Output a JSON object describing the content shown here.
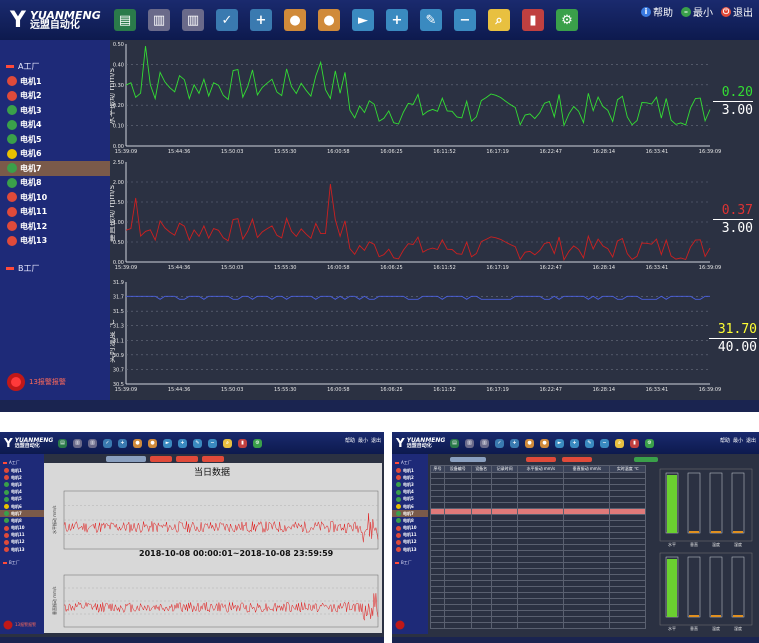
{
  "brand": {
    "en": "YUANMENG",
    "cn": "远盟自动化"
  },
  "toolbar": {
    "icons": [
      "monitor-icon",
      "factory-view-icon",
      "factory-settings-icon",
      "motor-check-icon",
      "motor-add-icon",
      "user-check-icon",
      "user-settings-icon",
      "flag-icon",
      "flag-add-icon",
      "flag-edit-icon",
      "flag-remove-icon",
      "report-search-icon",
      "bar-chart-icon",
      "gear-icon"
    ],
    "help": "帮助",
    "minimize": "最小",
    "exit": "退出"
  },
  "sidebar": {
    "factory_a": "A工厂",
    "factory_b": "B工厂",
    "motors": [
      {
        "label": "电机1",
        "status": "red"
      },
      {
        "label": "电机2",
        "status": "red"
      },
      {
        "label": "电机3",
        "status": "green"
      },
      {
        "label": "电机4",
        "status": "green"
      },
      {
        "label": "电机5",
        "status": "green"
      },
      {
        "label": "电机6",
        "status": "yellow"
      },
      {
        "label": "电机7",
        "status": "green",
        "selected": true
      },
      {
        "label": "电机8",
        "status": "green"
      },
      {
        "label": "电机10",
        "status": "red"
      },
      {
        "label": "电机11",
        "status": "red"
      },
      {
        "label": "电机12",
        "status": "red"
      },
      {
        "label": "电机13",
        "status": "red"
      }
    ],
    "alarm": "13报警报警"
  },
  "charts": {
    "x_ticks": [
      "15:39:09",
      "15:44:36",
      "15:50:03",
      "15:55:30",
      "16:00:58",
      "16:06:25",
      "16:11:52",
      "16:17:19",
      "16:22:47",
      "16:28:14",
      "16:33:41",
      "16:39:09"
    ],
    "h_vib": {
      "ylabel": "水平振动 mm/s",
      "yticks": [
        "0.50",
        "0.40",
        "0.30",
        "0.20",
        "0.10",
        "0.00"
      ],
      "current": "0.20",
      "limit": "3.00",
      "color": "#33dd33",
      "current_color": "#33dd33"
    },
    "v_vib": {
      "ylabel": "垂直振动 mm/s",
      "yticks": [
        "2.50",
        "2.00",
        "1.50",
        "1.00",
        "0.50",
        "0.00"
      ],
      "current": "0.37",
      "limit": "3.00",
      "color": "#cc2020",
      "current_color": "#dd3333"
    },
    "temp": {
      "ylabel": "实时温度 ℃",
      "yticks": [
        "31.9",
        "31.7",
        "31.5",
        "31.3",
        "31.1",
        "30.9",
        "30.7",
        "30.5"
      ],
      "current": "31.70",
      "limit": "40.00",
      "color": "#4a60e0",
      "current_color": "#ffff33"
    }
  },
  "history_window": {
    "title": "当日数据",
    "range": "2018-10-08 00:00:01~2018-10-08 23:59:59",
    "chart1_ylabel": "水平振动 mm/s",
    "chart2_ylabel": "垂直振动 mm/s"
  },
  "table_window": {
    "columns": [
      "序号",
      "设备编号",
      "设备名",
      "记录时间",
      "水平振动 mm/s",
      "垂直振动 mm/s",
      "实时温度 ℃"
    ],
    "bar_labels": [
      "水平",
      "垂直",
      "温度",
      "湿度"
    ]
  }
}
